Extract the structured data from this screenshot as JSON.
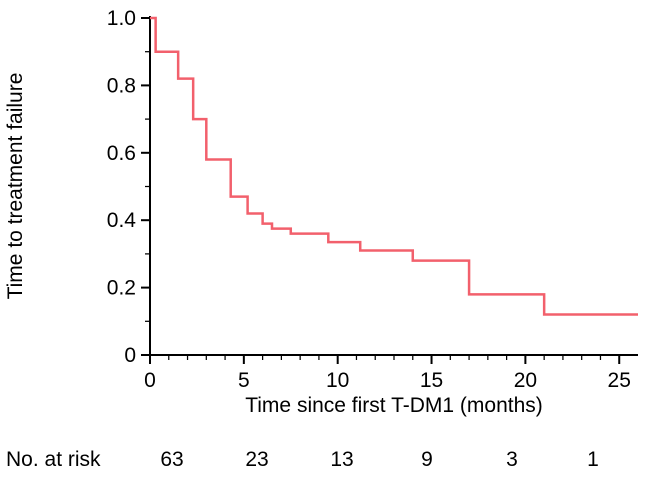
{
  "chart_data": {
    "type": "line",
    "style": "kaplan-meier-step",
    "title": "",
    "xlabel": "Time since first T-DM1 (months)",
    "ylabel": "Time to treatment failure",
    "xlim": [
      0,
      26
    ],
    "ylim": [
      0,
      1.0
    ],
    "grid": false,
    "legend": null,
    "x_ticks": [
      0,
      5,
      10,
      15,
      20,
      25
    ],
    "x_tick_labels": [
      "0",
      "5",
      "10",
      "15",
      "20",
      "25"
    ],
    "y_ticks": [
      0,
      0.2,
      0.4,
      0.6,
      0.8,
      1.0
    ],
    "y_tick_labels": [
      "0",
      "0.2",
      "0.4",
      "0.6",
      "0.8",
      "1.0"
    ],
    "axis_color": "#000000",
    "series": [
      {
        "name": "Time to treatment failure",
        "color": "#f2606c",
        "end_time": 26,
        "step_points": [
          [
            0,
            1.0
          ],
          [
            0.3,
            0.9
          ],
          [
            1.5,
            0.82
          ],
          [
            2.3,
            0.7
          ],
          [
            3.0,
            0.58
          ],
          [
            4.3,
            0.47
          ],
          [
            5.2,
            0.42
          ],
          [
            6.0,
            0.39
          ],
          [
            6.5,
            0.375
          ],
          [
            7.5,
            0.36
          ],
          [
            9.5,
            0.335
          ],
          [
            11.2,
            0.31
          ],
          [
            14.0,
            0.28
          ],
          [
            17.0,
            0.18
          ],
          [
            21.0,
            0.12
          ]
        ]
      }
    ],
    "at_risk": {
      "label": "No. at risk",
      "times": [
        0,
        5,
        10,
        15,
        20,
        25
      ],
      "counts": [
        63,
        23,
        13,
        9,
        3,
        1
      ]
    }
  }
}
